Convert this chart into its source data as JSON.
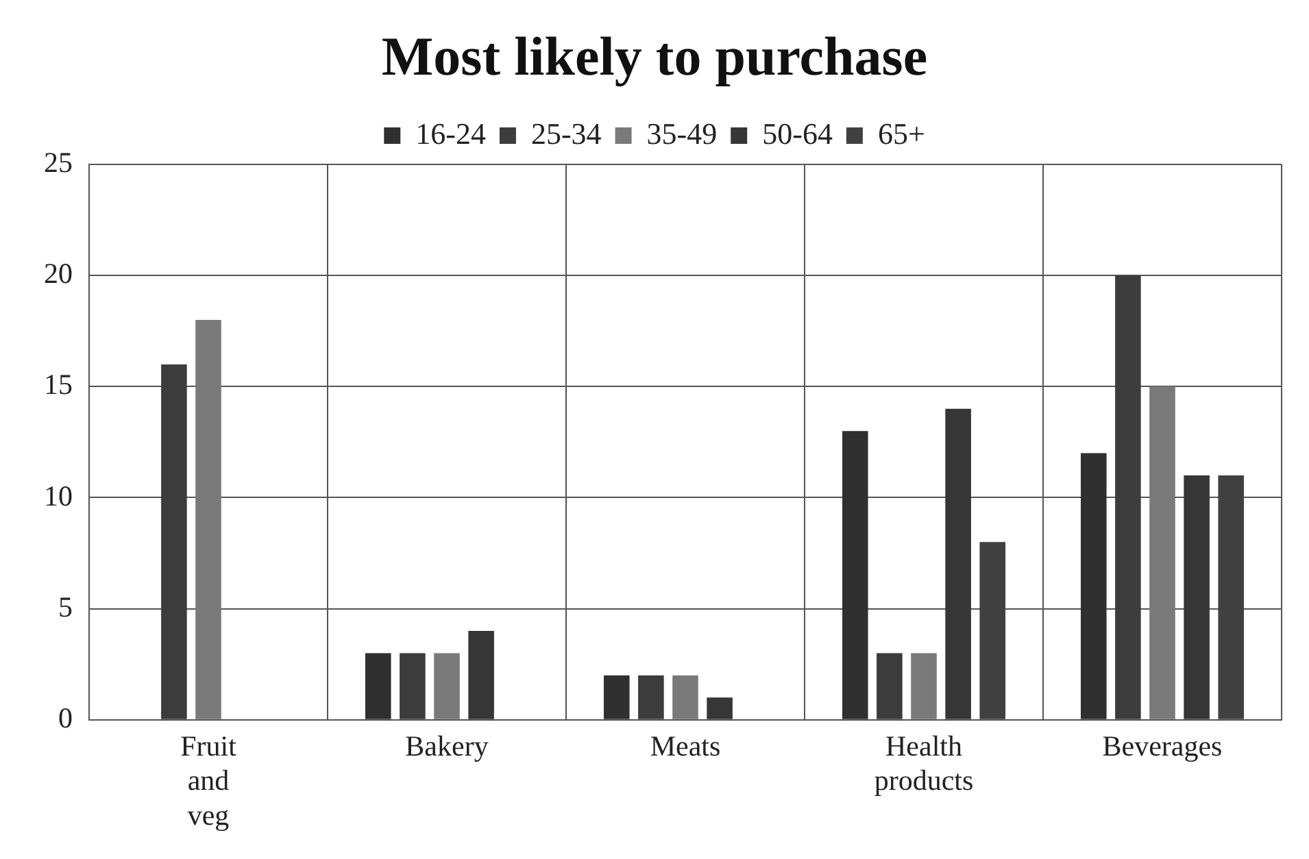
{
  "chart_data": {
    "type": "bar",
    "title": "Most likely to purchase",
    "categories": [
      "Fruit and veg",
      "Bakery",
      "Meats",
      "Health products",
      "Beverages"
    ],
    "series": [
      {
        "name": "16-24",
        "color": "#303030",
        "values": [
          null,
          3,
          2,
          13,
          12
        ]
      },
      {
        "name": "25-34",
        "color": "#3c3c3c",
        "values": [
          16,
          3,
          2,
          3,
          20
        ]
      },
      {
        "name": "35-49",
        "color": "#7a7a7a",
        "values": [
          18,
          3,
          2,
          3,
          15
        ]
      },
      {
        "name": "50-64",
        "color": "#363636",
        "values": [
          null,
          4,
          1,
          14,
          11
        ]
      },
      {
        "name": "65+",
        "color": "#404040",
        "values": [
          null,
          null,
          null,
          8,
          11
        ]
      }
    ],
    "ylim": [
      0,
      25
    ],
    "yticks": [
      0,
      5,
      10,
      15,
      20,
      25
    ],
    "grid": true,
    "legend": "top"
  }
}
